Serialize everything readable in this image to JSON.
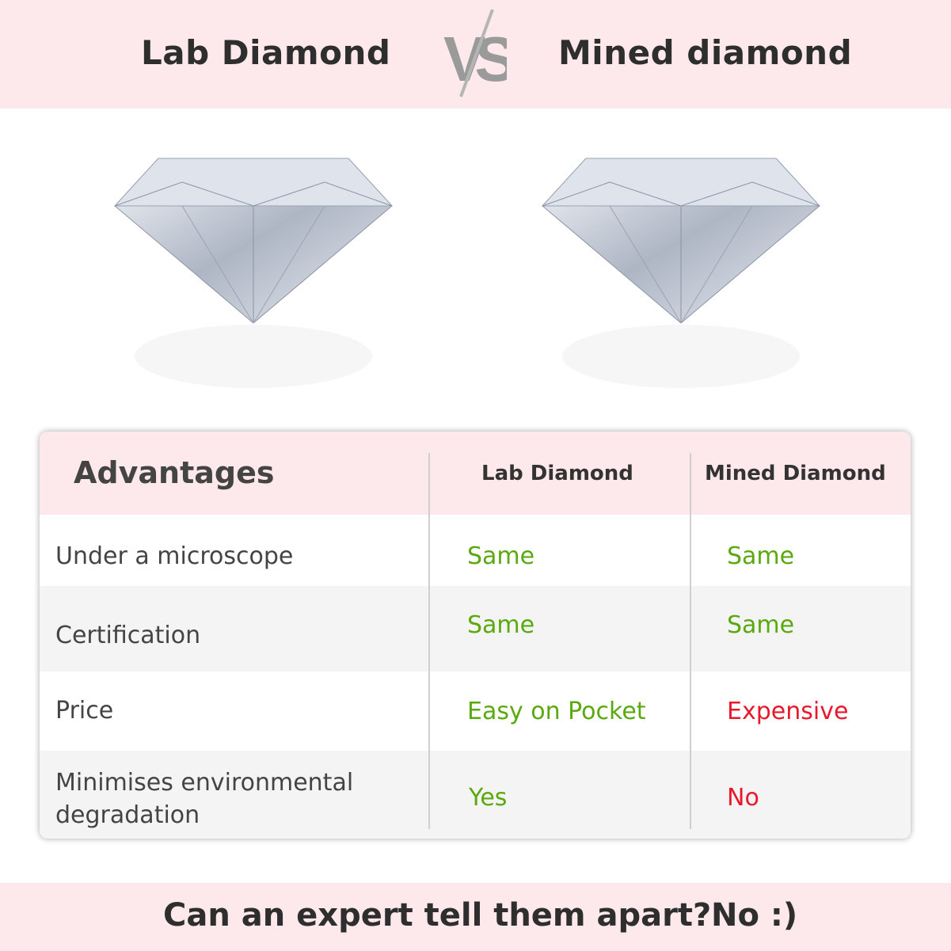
{
  "header": {
    "left_title": "Lab Diamond",
    "vs_label": "VS",
    "right_title": "Mined diamond"
  },
  "table": {
    "headers": [
      "Advantages",
      "Lab Diamond",
      "Mined Diamond"
    ],
    "rows": [
      {
        "label": "Under a microscope",
        "lab": "Same",
        "mined": "Same"
      },
      {
        "label": "Certification",
        "lab": "Same",
        "mined": "Same"
      },
      {
        "label": "Price",
        "lab": "Easy on Pocket",
        "mined": "Expensive"
      },
      {
        "label": "Minimises environmental degradation",
        "lab": "Yes",
        "mined": "No"
      }
    ]
  },
  "footer": {
    "question": "Can an expert tell them apart?",
    "answer": "No :)"
  },
  "colors": {
    "banner": "#fde8ec",
    "positive": "#5aa90e",
    "negative": "#e8192c",
    "row_alt": "#f4f4f4"
  }
}
